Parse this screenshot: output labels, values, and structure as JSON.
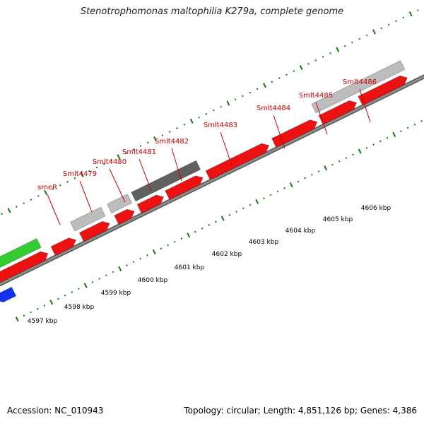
{
  "title": "Stenotrophomonas maltophilia K279a, complete genome",
  "footer": {
    "accession": "Accession: NC_010943",
    "summary": "Topology: circular; Length: 4,851,126 bp; Genes: 4,386"
  },
  "colors": {
    "forward_cds": "#ee1111",
    "other_gene": "#bdbdbd",
    "highlight_gene": "#606060",
    "green_feature": "#33cc33",
    "reverse_cds": "#1133ee",
    "tick": "#117711",
    "backbone": "#8c8c8c",
    "label": "#cc0000"
  },
  "scale_labels": [
    "4597 kbp",
    "4598 kbp",
    "4599 kbp",
    "4600 kbp",
    "4601 kbp",
    "4602 kbp",
    "4603 kbp",
    "4604 kbp",
    "4605 kbp",
    "4606 kbp"
  ],
  "gene_labels": [
    "smeR",
    "Smlt4479",
    "Smlt4480",
    "Smlt4481",
    "Smlt4482",
    "Smlt4483",
    "Smlt4484",
    "Smlt4485",
    "Smlt4486"
  ]
}
